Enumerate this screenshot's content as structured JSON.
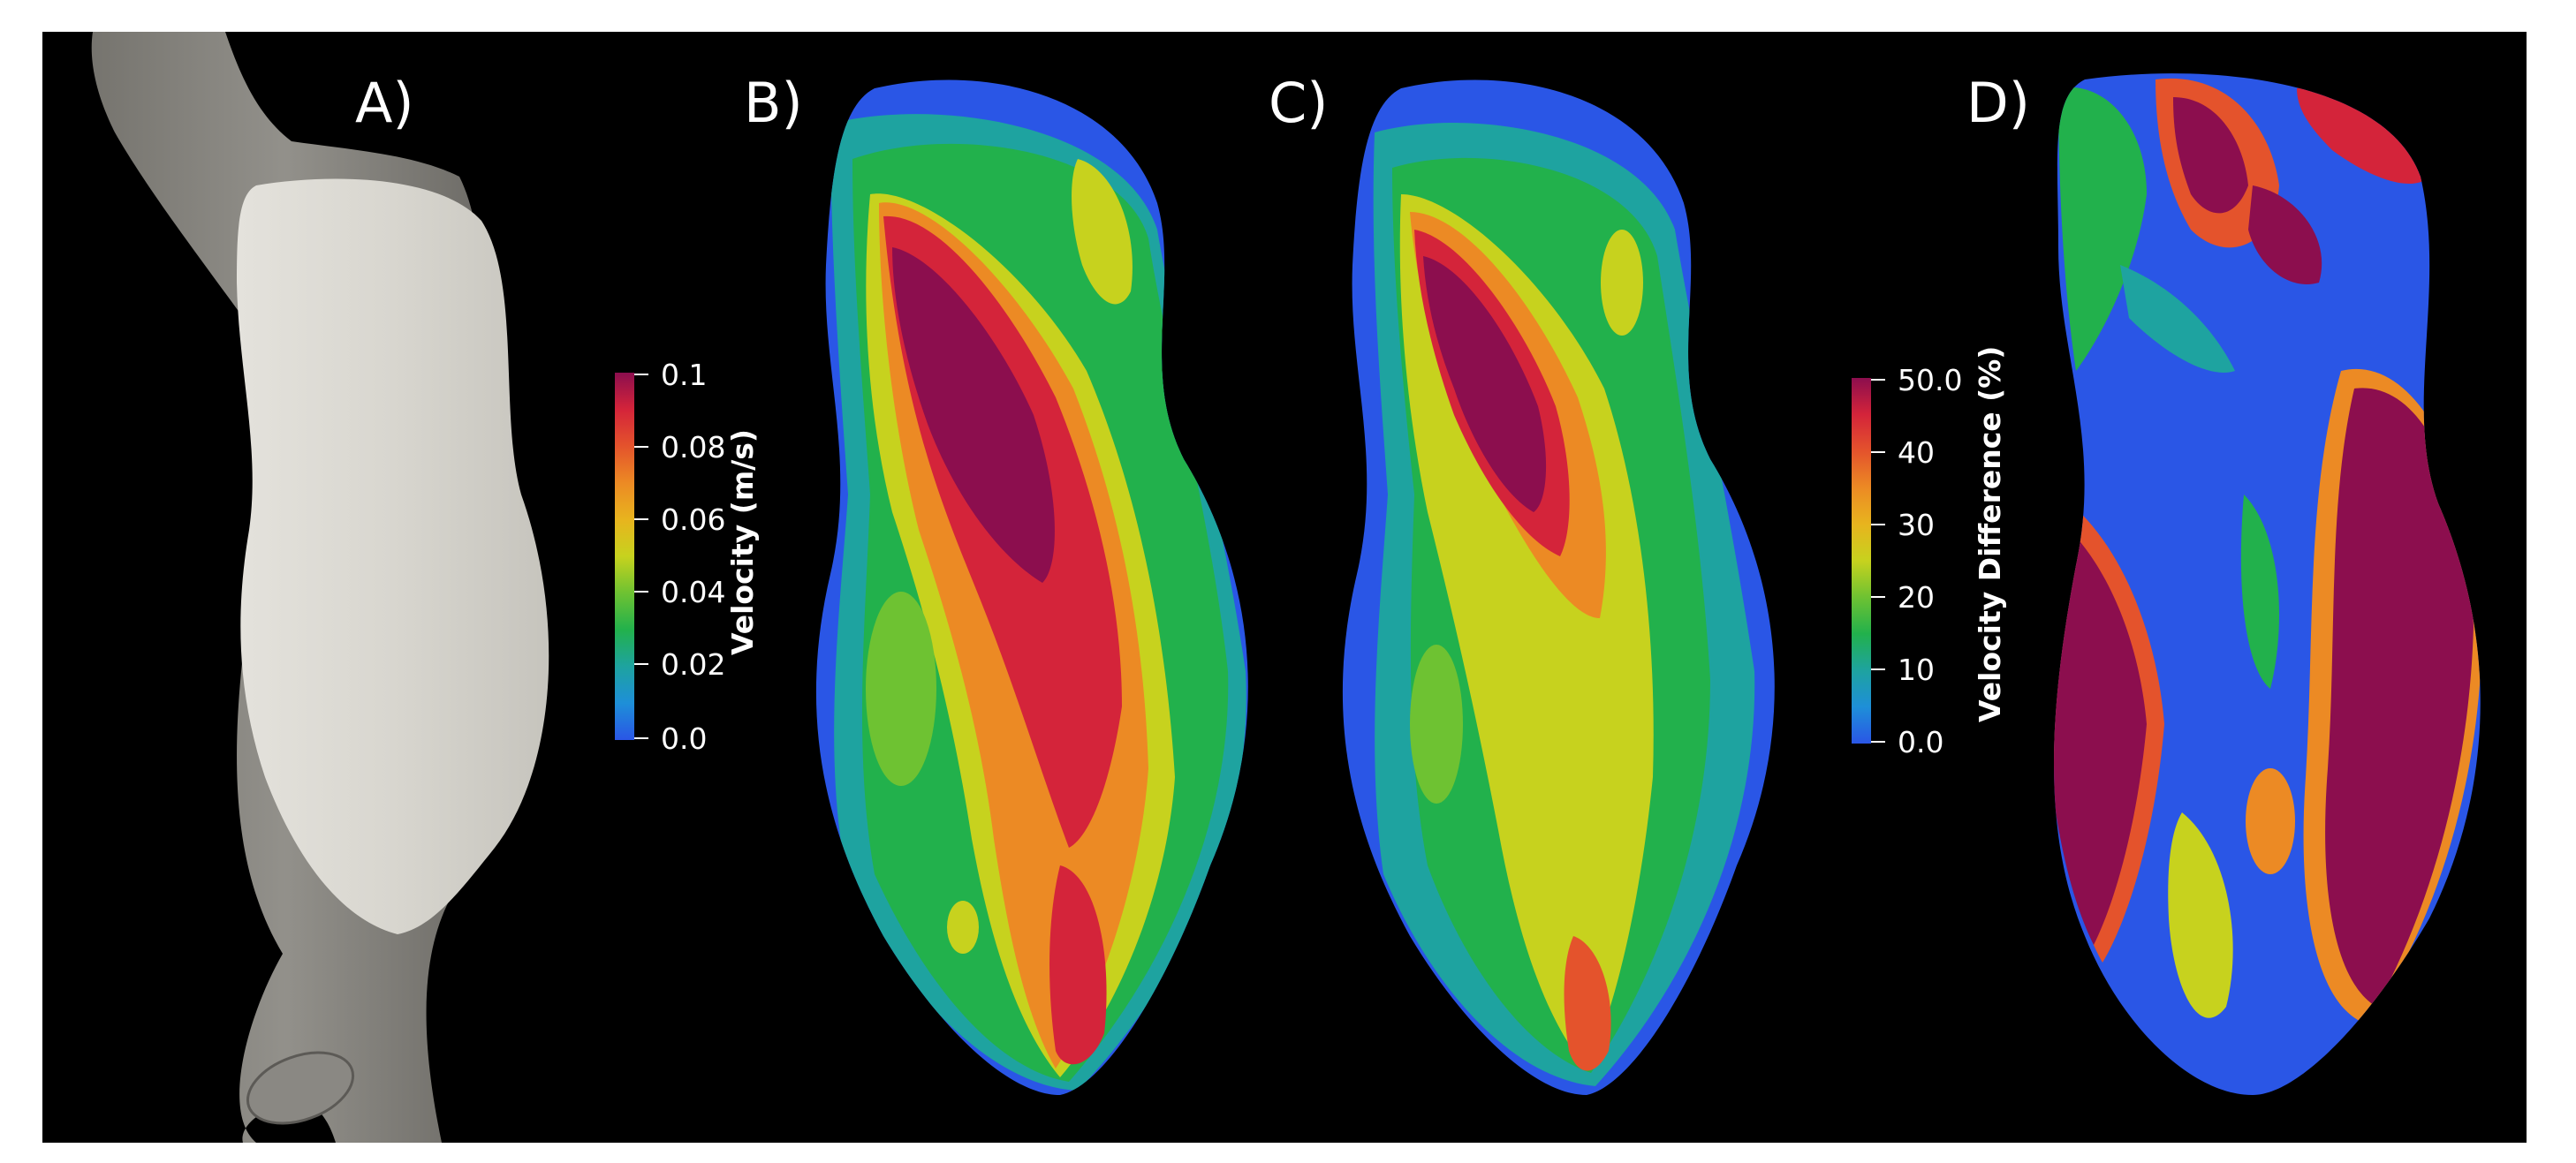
{
  "panels": {
    "a_label": "A)",
    "b_label": "B)",
    "c_label": "C)",
    "d_label": "D)"
  },
  "velocity_colorbar": {
    "title": "Velocity (m/s)",
    "ticks": [
      "0.1",
      "0.08",
      "0.06",
      "0.04",
      "0.02",
      "0.0"
    ]
  },
  "difference_colorbar": {
    "title": "Velocity Difference (%)",
    "ticks": [
      "50.0",
      "40",
      "30",
      "20",
      "10",
      "0.0"
    ]
  },
  "colors": {
    "background": "#000000",
    "frame": "#ffffff",
    "colormap": [
      "#2a56e6",
      "#1e8fd8",
      "#1ea3a0",
      "#22b14c",
      "#6ec232",
      "#c7d21e",
      "#e8b41e",
      "#ec8a24",
      "#e4532c",
      "#d4243a",
      "#8c0e4e"
    ]
  }
}
